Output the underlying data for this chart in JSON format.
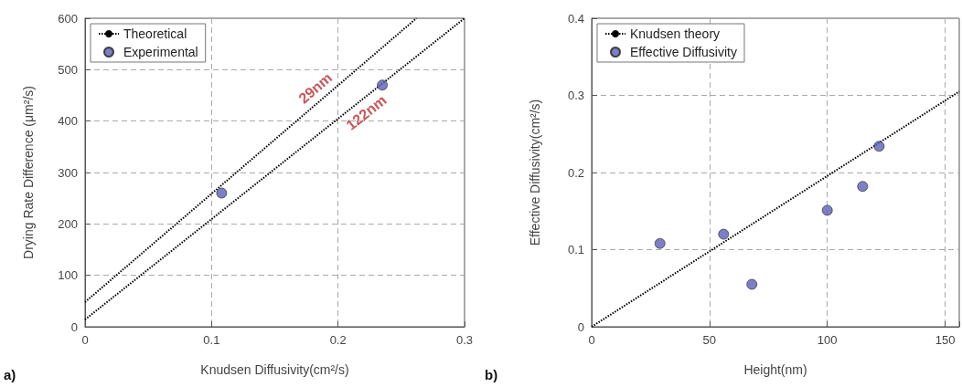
{
  "chart_data": [
    {
      "type": "scatter",
      "xlabel": "Knudsen Diffusivity(cm²/s)",
      "ylabel": "Drying Rate Difference (μm²/s)",
      "xlim": [
        0,
        0.3
      ],
      "ylim": [
        0,
        600
      ],
      "xticks": [
        0,
        0.1,
        0.2,
        0.3
      ],
      "yticks": [
        0,
        100,
        200,
        300,
        400,
        500,
        600
      ],
      "grid": true,
      "legend": "top left",
      "line_style": "dotted",
      "marker": "circle",
      "series": [
        {
          "name": "Theoretical",
          "type": "line",
          "marker": "none",
          "color": "#000000",
          "x": [
            0,
            0.262
          ],
          "values": [
            48,
            600
          ]
        },
        {
          "type": "line",
          "marker": "none",
          "color": "#000000",
          "x": [
            0,
            0.3
          ],
          "values": [
            14,
            600
          ]
        },
        {
          "name": "Experimental",
          "color": "#5b5fb8",
          "x": [
            0.108,
            0.235
          ],
          "values": [
            260,
            470
          ]
        }
      ],
      "annotations": [
        "29nm",
        "122nm",
        "a)"
      ]
    },
    {
      "type": "scatter",
      "xlabel": "Height(nm)",
      "ylabel": "Effective Diffusivity(cm²/s)",
      "xlim": [
        0,
        156
      ],
      "ylim": [
        0,
        0.4
      ],
      "xticks": [
        0,
        50,
        100,
        150
      ],
      "yticks": [
        0,
        0.1,
        0.2,
        0.3,
        0.4
      ],
      "grid": true,
      "legend": "top left",
      "line_style": "dotted",
      "marker": "circle",
      "series": [
        {
          "name": "Knudsen theory",
          "type": "line",
          "marker": "none",
          "color": "#000000",
          "x": [
            0,
            156
          ],
          "values": [
            0,
            0.305
          ]
        },
        {
          "name": "Effective Diffusivity",
          "color": "#5b5fb8",
          "x": [
            29,
            56,
            68,
            100,
            115,
            122
          ],
          "values": [
            0.108,
            0.12,
            0.055,
            0.151,
            0.182,
            0.234
          ]
        }
      ],
      "annotations": [
        "b)"
      ]
    }
  ]
}
